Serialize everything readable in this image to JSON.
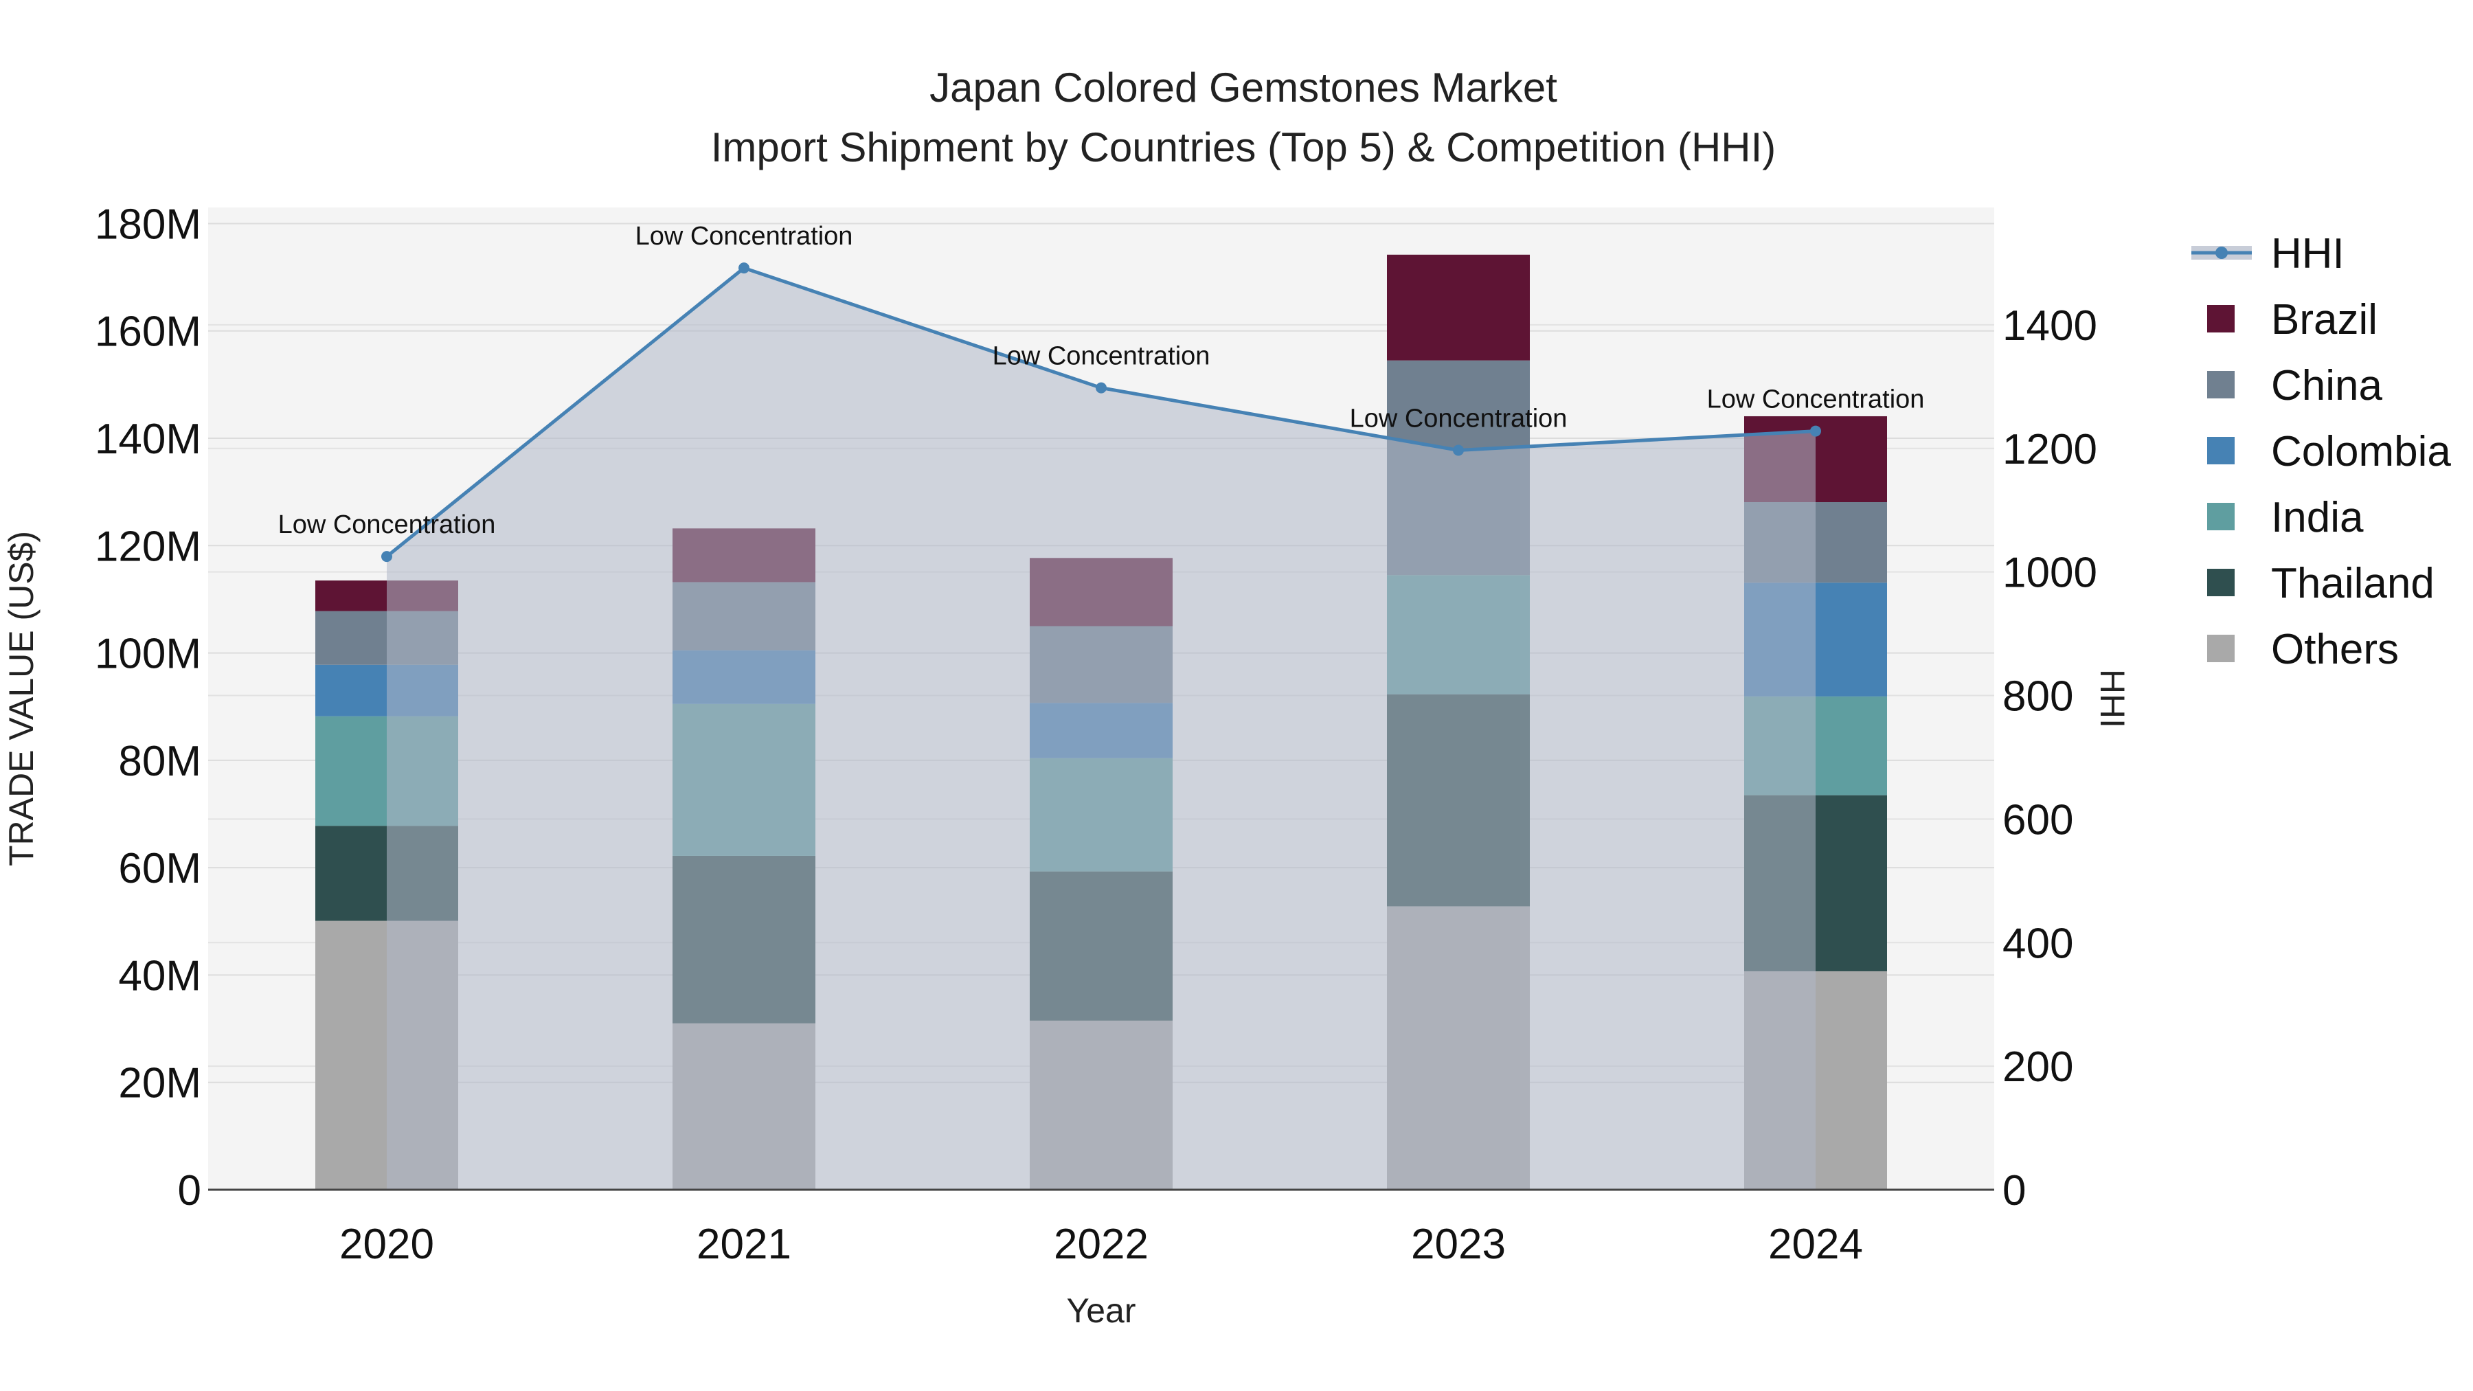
{
  "chart_data": {
    "type": "bar",
    "title": "Japan Colored Gemstones Market",
    "subtitle": "Import Shipment by Countries (Top 5) & Competition (HHI)",
    "xlabel": "Year",
    "ylabel": "TRADE VALUE (US$)",
    "y2label": "HHI",
    "categories": [
      "2020",
      "2021",
      "2022",
      "2023",
      "2024"
    ],
    "ylim": [
      0,
      183000000
    ],
    "y2lim": [
      0,
      1590
    ],
    "y_ticks": [
      {
        "value": 0,
        "label": "0"
      },
      {
        "value": 20000000,
        "label": "20M"
      },
      {
        "value": 40000000,
        "label": "40M"
      },
      {
        "value": 60000000,
        "label": "60M"
      },
      {
        "value": 80000000,
        "label": "80M"
      },
      {
        "value": 100000000,
        "label": "100M"
      },
      {
        "value": 120000000,
        "label": "120M"
      },
      {
        "value": 140000000,
        "label": "140M"
      },
      {
        "value": 160000000,
        "label": "160M"
      },
      {
        "value": 180000000,
        "label": "180M"
      }
    ],
    "y2_ticks": [
      {
        "value": 0,
        "label": "0"
      },
      {
        "value": 200,
        "label": "200"
      },
      {
        "value": 400,
        "label": "400"
      },
      {
        "value": 600,
        "label": "600"
      },
      {
        "value": 800,
        "label": "800"
      },
      {
        "value": 1000,
        "label": "1000"
      },
      {
        "value": 1200,
        "label": "1200"
      },
      {
        "value": 1400,
        "label": "1400"
      }
    ],
    "stack_order": [
      "Others",
      "Thailand",
      "India",
      "Colombia",
      "China",
      "Brazil"
    ],
    "series": [
      {
        "name": "Brazil",
        "color": "#5e1434",
        "values": [
          5700000,
          10000000,
          12700000,
          19700000,
          16000000
        ]
      },
      {
        "name": "China",
        "color": "#708090",
        "values": [
          10000000,
          12700000,
          14300000,
          40000000,
          15000000
        ]
      },
      {
        "name": "Colombia",
        "color": "#4682b4",
        "values": [
          9600000,
          10000000,
          10300000,
          0,
          21200000
        ]
      },
      {
        "name": "India",
        "color": "#5f9ea0",
        "values": [
          20400000,
          28300000,
          21100000,
          22200000,
          18400000
        ]
      },
      {
        "name": "Thailand",
        "color": "#2f4f4f",
        "values": [
          17700000,
          31200000,
          27800000,
          39500000,
          32800000
        ]
      },
      {
        "name": "Others",
        "color": "#a9a9a9",
        "values": [
          50100000,
          31000000,
          31500000,
          52800000,
          40700000
        ]
      }
    ],
    "hhi": {
      "name": "HHI",
      "color": "#4682b4",
      "fill_color": "#b0b8c8",
      "values": [
        1025,
        1492,
        1298,
        1197,
        1228
      ],
      "annotations": [
        "Low Concentration",
        "Low Concentration",
        "Low Concentration",
        "Low Concentration",
        "Low Concentration"
      ]
    },
    "legend": {
      "position": "right",
      "items": [
        {
          "label": "HHI",
          "kind": "line",
          "color": "#4682b4"
        },
        {
          "label": "Brazil",
          "kind": "box",
          "color": "#5e1434"
        },
        {
          "label": "China",
          "kind": "box",
          "color": "#708090"
        },
        {
          "label": "Colombia",
          "kind": "box",
          "color": "#4682b4"
        },
        {
          "label": "India",
          "kind": "box",
          "color": "#5f9ea0"
        },
        {
          "label": "Thailand",
          "kind": "box",
          "color": "#2f4f4f"
        },
        {
          "label": "Others",
          "kind": "box",
          "color": "#a9a9a9"
        }
      ]
    },
    "grid": true
  }
}
